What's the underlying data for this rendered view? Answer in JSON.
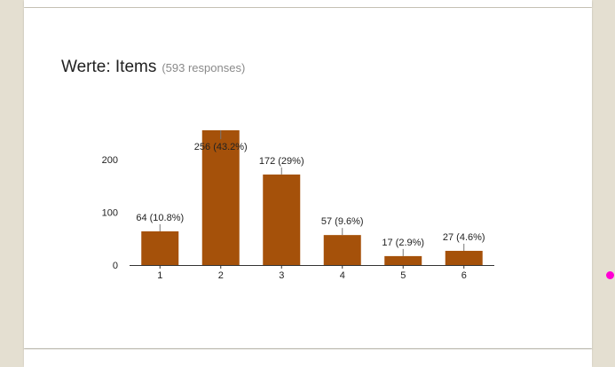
{
  "header": {
    "title": "Werte: Items",
    "responses": "(593 responses)"
  },
  "chart_data": {
    "type": "bar",
    "categories": [
      "1",
      "2",
      "3",
      "4",
      "5",
      "6"
    ],
    "values": [
      64,
      256,
      172,
      57,
      17,
      27
    ],
    "data_labels": [
      "64 (10.8%)",
      "256 (43.2%)",
      "172 (29%)",
      "57 (9.6%)",
      "17 (2.9%)",
      "27 (4.6%)"
    ],
    "y_ticks": [
      "0",
      "100",
      "200"
    ],
    "ylim": [
      0,
      256
    ],
    "grid": false,
    "bar_color": "#a5510a"
  }
}
